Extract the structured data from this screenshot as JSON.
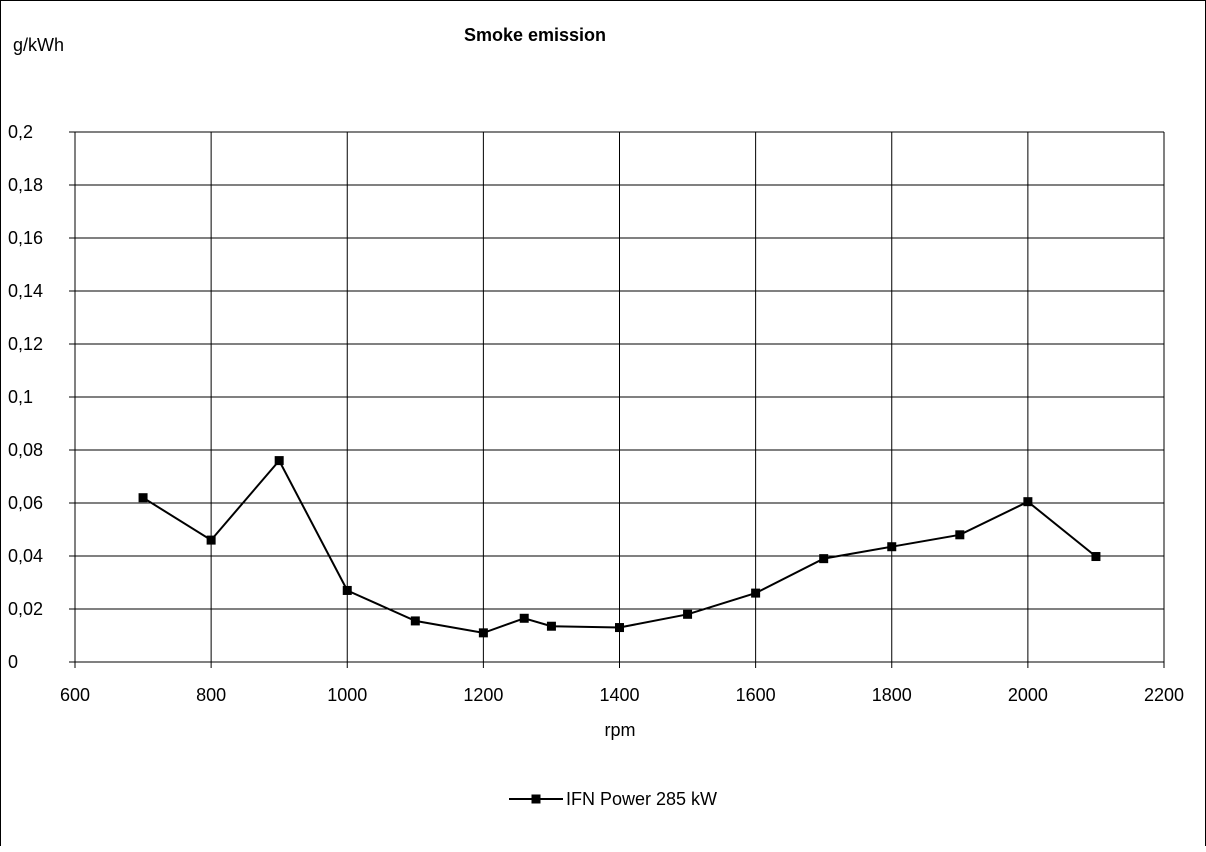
{
  "chart_data": {
    "type": "line",
    "title": "Smoke emission",
    "xlabel": "rpm",
    "ylabel": "g/kWh",
    "xlim": [
      600,
      2200
    ],
    "ylim": [
      0,
      0.2
    ],
    "x_ticks": [
      600,
      800,
      1000,
      1200,
      1400,
      1600,
      1800,
      2000,
      2200
    ],
    "x_tick_labels": [
      "600",
      "800",
      "1000",
      "1200",
      "1400",
      "1600",
      "1800",
      "2000",
      "2200"
    ],
    "y_ticks": [
      0,
      0.02,
      0.04,
      0.06,
      0.08,
      0.1,
      0.12,
      0.14,
      0.16,
      0.18,
      0.2
    ],
    "y_tick_labels": [
      "0",
      "0,02",
      "0,04",
      "0,06",
      "0,08",
      "0,1",
      "0,12",
      "0,14",
      "0,16",
      "0,18",
      "0,2"
    ],
    "grid": true,
    "legend_position": "bottom-center",
    "series": [
      {
        "name": "IFN Power 285 kW",
        "color": "#000000",
        "marker": "square",
        "x": [
          700,
          800,
          900,
          1000,
          1100,
          1200,
          1260,
          1300,
          1400,
          1500,
          1600,
          1700,
          1800,
          1900,
          2000,
          2100
        ],
        "y": [
          0.062,
          0.046,
          0.076,
          0.027,
          0.0155,
          0.011,
          0.0165,
          0.0135,
          0.013,
          0.018,
          0.026,
          0.039,
          0.0435,
          0.048,
          0.0605,
          0.0398
        ]
      }
    ]
  }
}
